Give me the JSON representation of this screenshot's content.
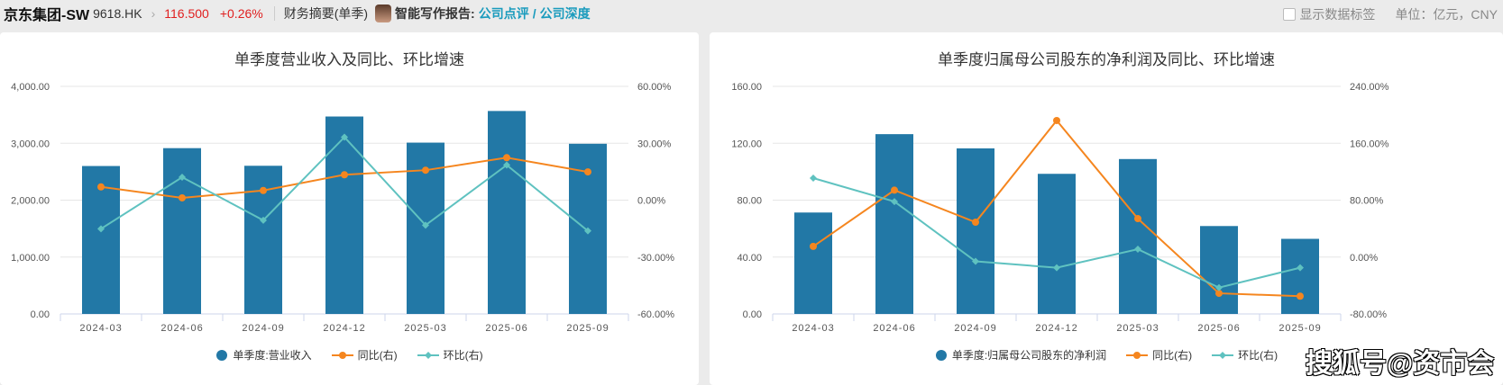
{
  "header": {
    "name": "京东集团-SW",
    "code": "9618.HK",
    "price": "116.500",
    "change": "+0.26%",
    "section": "财务摘要(单季)",
    "ai_label": "智能写作报告:",
    "link1": "公司点评",
    "slash": "/",
    "link2": "公司深度",
    "show_labels": "显示数据标签",
    "unit": "单位：亿元，CNY"
  },
  "colors": {
    "bar": "#2278a6",
    "yoy": "#f5861f",
    "qoq": "#5fc2c0"
  },
  "watermark": "搜狐号@资市会",
  "chart_data": [
    {
      "type": "bar+line",
      "title": "单季度营业收入及同比、环比增速",
      "categories": [
        "2024-03",
        "2024-06",
        "2024-09",
        "2024-12",
        "2025-03",
        "2025-06",
        "2025-09"
      ],
      "ylim": [
        0,
        4000
      ],
      "yticks": [
        "0.00",
        "1,000.00",
        "2,000.00",
        "3,000.00",
        "4,000.00"
      ],
      "y2lim": [
        -60,
        60
      ],
      "y2ticks": [
        "-60.00%",
        "-30.00%",
        "0.00%",
        "30.00%",
        "60.00%"
      ],
      "series": [
        {
          "name": "单季度:营业收入",
          "type": "bar",
          "values": [
            2600,
            2914,
            2604,
            3470,
            3011,
            3567,
            2991
          ]
        },
        {
          "name": "同比(右)",
          "type": "line",
          "values": [
            7.0,
            1.2,
            5.1,
            13.4,
            15.8,
            22.4,
            14.9
          ]
        },
        {
          "name": "环比(右)",
          "type": "line",
          "values": [
            -15.1,
            12.1,
            -10.6,
            33.2,
            -13.2,
            18.5,
            -16.2
          ]
        }
      ]
    },
    {
      "type": "bar+line",
      "title": "单季度归属母公司股东的净利润及同比、环比增速",
      "categories": [
        "2024-03",
        "2024-06",
        "2024-09",
        "2024-12",
        "2025-03",
        "2025-06",
        "2025-09"
      ],
      "ylim": [
        0,
        160
      ],
      "yticks": [
        "0.00",
        "40.00",
        "80.00",
        "120.00",
        "160.00"
      ],
      "y2lim": [
        -80,
        240
      ],
      "y2ticks": [
        "-80.00%",
        "0.00%",
        "80.00%",
        "160.00%",
        "240.00%"
      ],
      "series": [
        {
          "name": "单季度:归属母公司股东的净利润",
          "type": "bar",
          "values": [
            71.3,
            126.4,
            116.4,
            98.5,
            108.9,
            61.8,
            52.8
          ]
        },
        {
          "name": "同比(右)",
          "type": "line",
          "values": [
            15,
            94,
            49,
            192,
            54,
            -51,
            -55
          ]
        },
        {
          "name": "环比(右)",
          "type": "line",
          "values": [
            111,
            78,
            -6,
            -15,
            11,
            -43,
            -15
          ]
        }
      ]
    }
  ]
}
